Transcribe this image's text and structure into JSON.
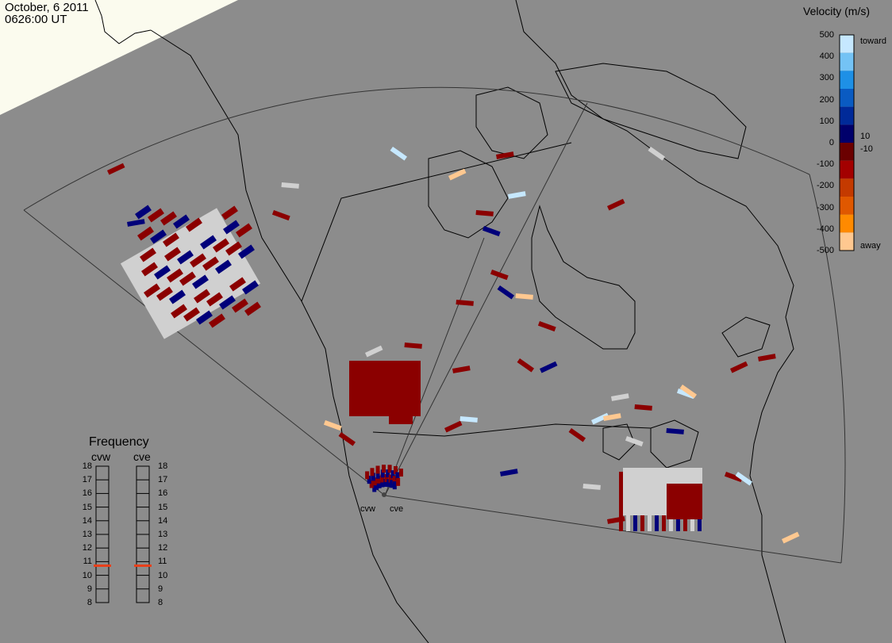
{
  "header": {
    "date": "October, 6 2011",
    "time": "0626:00 UT"
  },
  "colorbar": {
    "title": "Velocity (m/s)",
    "ticks": [
      "500",
      "400",
      "300",
      "200",
      "100",
      "0",
      "-100",
      "-200",
      "-300",
      "-400",
      "-500"
    ],
    "inner_ticks": [
      "10",
      "-10"
    ],
    "label_top": "toward",
    "label_bottom": "away",
    "colors": [
      "#c6e8ff",
      "#74c3f5",
      "#1e90e6",
      "#0a5bc2",
      "#002a99",
      "#00006b",
      "#6b0000",
      "#a30000",
      "#c43a00",
      "#e05800",
      "#ff8a00",
      "#ffc890"
    ]
  },
  "frequency": {
    "title": "Frequency",
    "radar_left": "cvw",
    "radar_right": "cve",
    "ticks": [
      "18",
      "17",
      "16",
      "15",
      "14",
      "13",
      "12",
      "11",
      "10",
      "9",
      "8"
    ],
    "cvw_value": 10.7,
    "cve_value": 10.7,
    "marker_color": "#e8401a"
  },
  "sites": {
    "west": "cvw",
    "east": "cve"
  }
}
